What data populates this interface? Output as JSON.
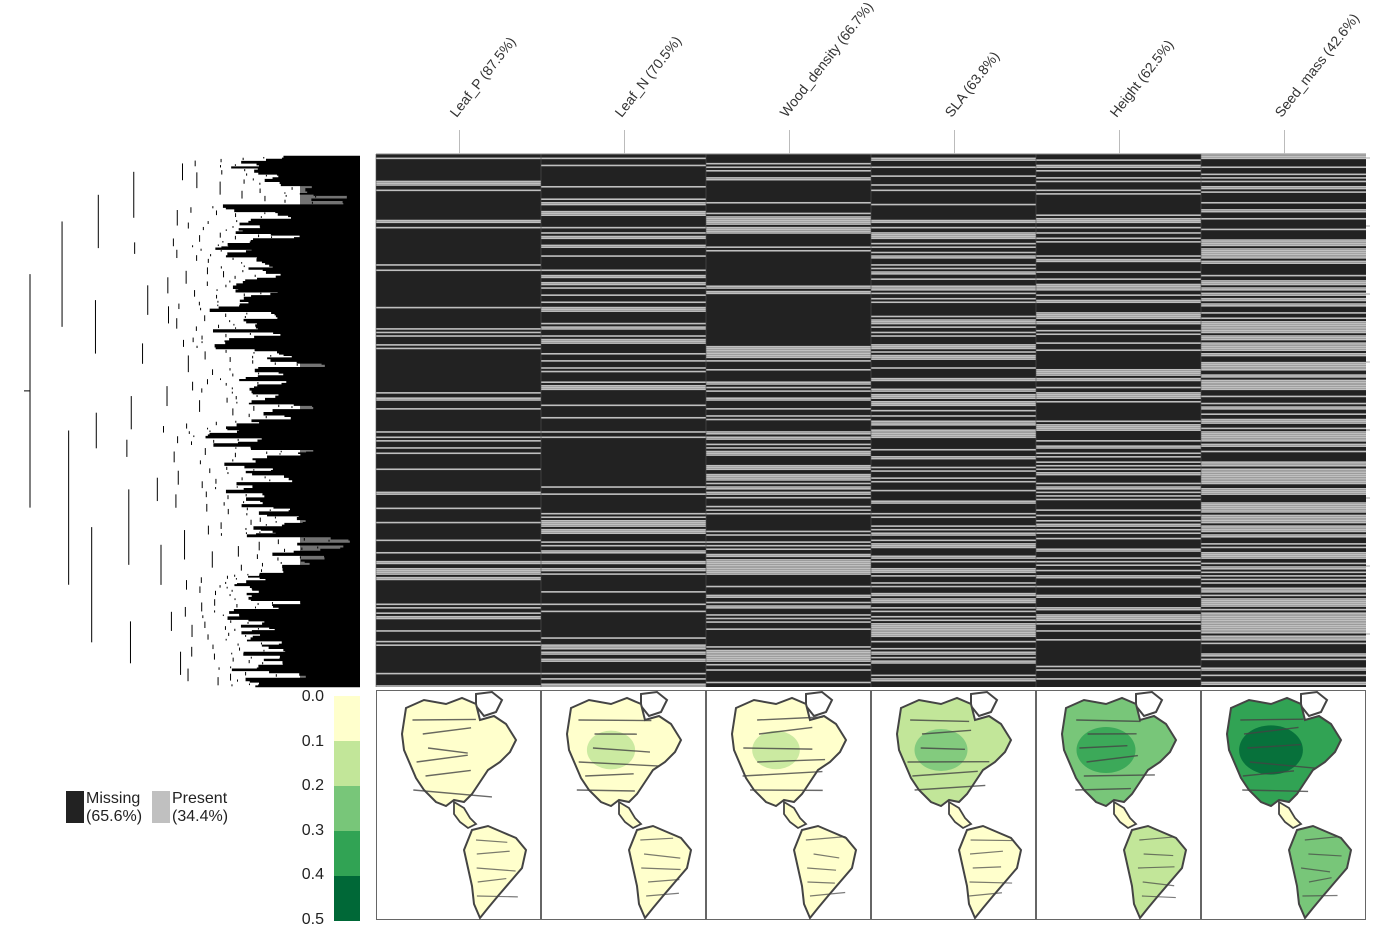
{
  "chart_data": [
    {
      "type": "heatmap",
      "title": "",
      "columns": [
        "Leaf_P (87.5%)",
        "Leaf_N (70.5%)",
        "Wood_density (66.7%)",
        "SLA (63.8%)",
        "Height (62.5%)",
        "Seed_mass (42.6%)"
      ],
      "traits": [
        "Leaf_P",
        "Leaf_N",
        "Wood_density",
        "SLA",
        "Height",
        "Seed_mass"
      ],
      "missing_percent": [
        87.5,
        70.5,
        66.7,
        63.8,
        62.5,
        42.6
      ],
      "legend": [
        {
          "label": "Missing",
          "percent": "(65.6%)",
          "color": "#222222"
        },
        {
          "label": "Present",
          "percent": "(34.4%)",
          "color": "#c0c0c0"
        }
      ],
      "row_dendrogram": "phylogeny of species (rows)"
    },
    {
      "type": "heatmap",
      "title": "",
      "map_panels": [
        "Leaf_P",
        "Leaf_N",
        "Wood_density",
        "SLA",
        "Height",
        "Seed_mass"
      ],
      "colorbar": {
        "ticks": [
          "0.0",
          "0.1",
          "0.2",
          "0.3",
          "0.4",
          "0.5"
        ],
        "min": 0.0,
        "max": 0.5,
        "colors": [
          "#ffffcc",
          "#c2e699",
          "#78c679",
          "#31a354",
          "#006837"
        ]
      },
      "panel_mean_levels": [
        0.02,
        0.07,
        0.06,
        0.15,
        0.25,
        0.33
      ]
    }
  ],
  "colors": {
    "missing": "#222222",
    "present": "#c0c0c0",
    "map_outline": "#444444"
  }
}
